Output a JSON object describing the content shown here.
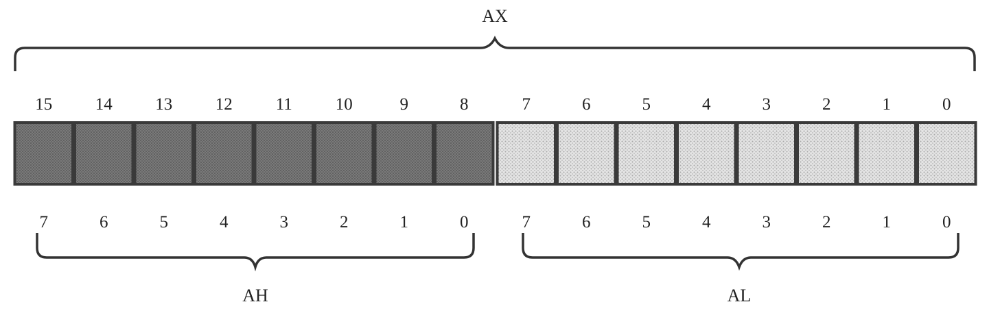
{
  "register": {
    "name": "AX",
    "high": {
      "name": "AH",
      "color": "#6e6e6e"
    },
    "low": {
      "name": "AL",
      "color": "#d6d6d6"
    }
  },
  "bit_numbers_top": [
    "15",
    "14",
    "13",
    "12",
    "11",
    "10",
    "9",
    "8",
    "7",
    "6",
    "5",
    "4",
    "3",
    "2",
    "1",
    "0"
  ],
  "bit_numbers_high": [
    "7",
    "6",
    "5",
    "4",
    "3",
    "2",
    "1",
    "0"
  ],
  "bit_numbers_low": [
    "7",
    "6",
    "5",
    "4",
    "3",
    "2",
    "1",
    "0"
  ],
  "colors": {
    "border": "#3a3a3a",
    "brace": "#333333",
    "text": "#222222"
  }
}
